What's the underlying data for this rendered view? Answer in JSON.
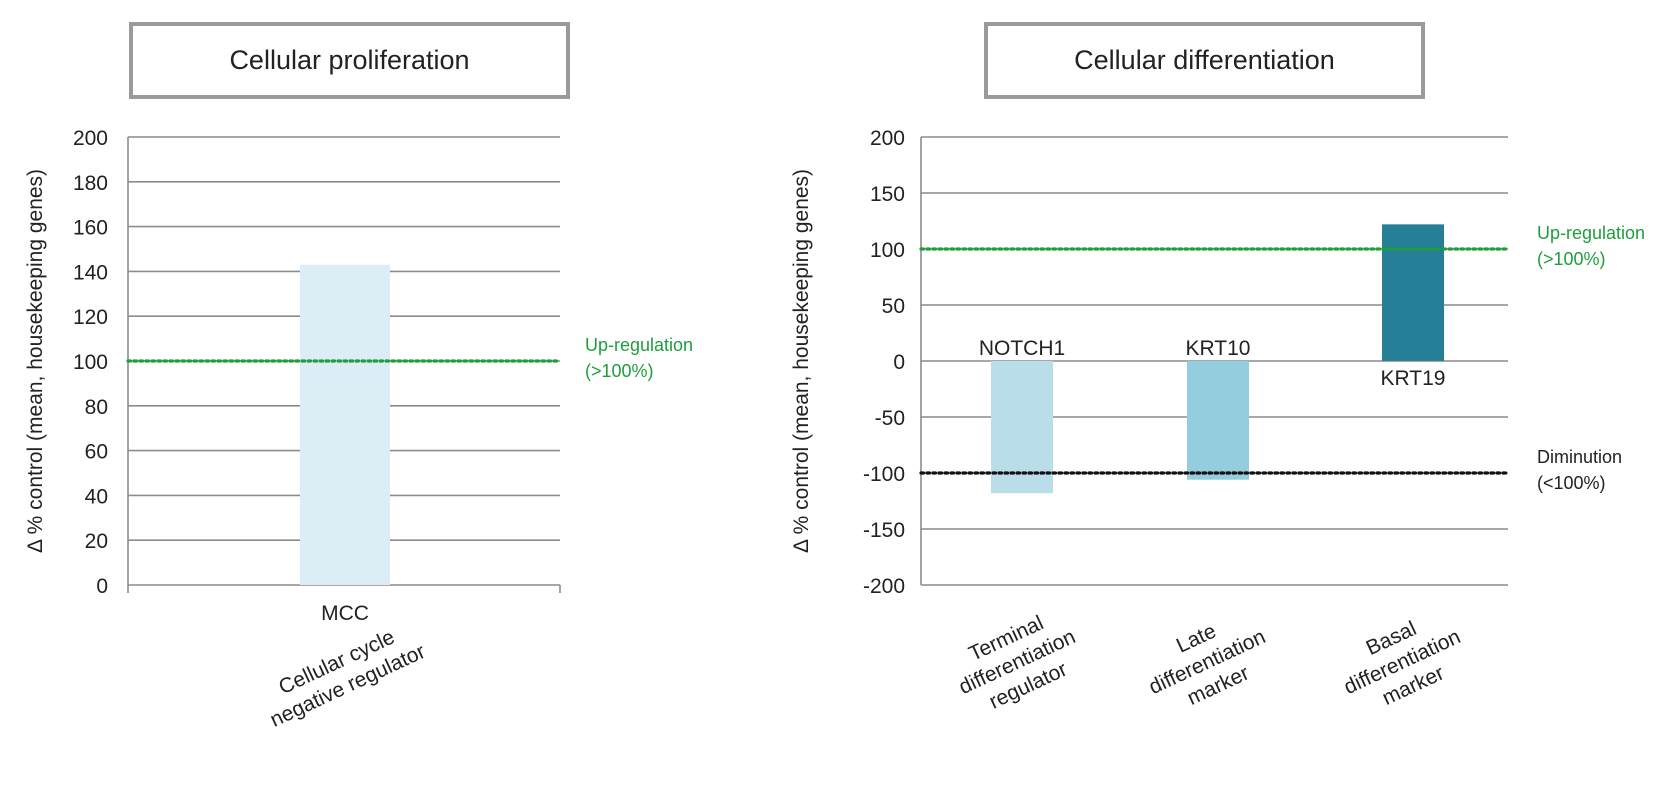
{
  "chart_data": [
    {
      "type": "bar",
      "title": "Cellular proliferation",
      "ylabel": "Δ % control (mean, housekeeping genes)",
      "ylim": [
        0,
        200
      ],
      "yticks": [
        0,
        20,
        40,
        60,
        80,
        100,
        120,
        140,
        160,
        180,
        200
      ],
      "categories": [
        "Cellular cycle negative regulator"
      ],
      "category_lines": [
        [
          "Cellular cycle",
          "negative regulator"
        ]
      ],
      "bars": [
        {
          "gene": "MCC",
          "value": 143,
          "color": "#dcedf5"
        }
      ],
      "reference_lines": [
        {
          "value": 100,
          "color": "#1e9e3c",
          "label_lines": [
            "Up-regulation",
            "(>100%)"
          ]
        }
      ]
    },
    {
      "type": "bar",
      "title": "Cellular differentiation",
      "ylabel": "Δ % control (mean, housekeeping genes)",
      "ylim": [
        -200,
        200
      ],
      "yticks": [
        -200,
        -150,
        -100,
        -50,
        0,
        50,
        100,
        150,
        200
      ],
      "categories": [
        "Terminal differentiation regulator",
        "Late differentiation marker",
        "Basal differentiation marker"
      ],
      "category_lines": [
        [
          "Terminal",
          "differentiation",
          "regulator"
        ],
        [
          "Late",
          "differentiation",
          "marker"
        ],
        [
          "Basal",
          "differentiation",
          "marker"
        ]
      ],
      "bars": [
        {
          "gene": "NOTCH1",
          "value": -118,
          "color": "#b9dde9"
        },
        {
          "gene": "KRT10",
          "value": -106,
          "color": "#94cddd"
        },
        {
          "gene": "KRT19",
          "value": 122,
          "color": "#257f96"
        }
      ],
      "reference_lines": [
        {
          "value": 100,
          "color": "#1e9e3c",
          "label_lines": [
            "Up-regulation",
            "(>100%)"
          ]
        },
        {
          "value": -100,
          "color": "#111111",
          "label_lines": [
            "Diminution",
            "(<100%)"
          ]
        }
      ]
    }
  ]
}
